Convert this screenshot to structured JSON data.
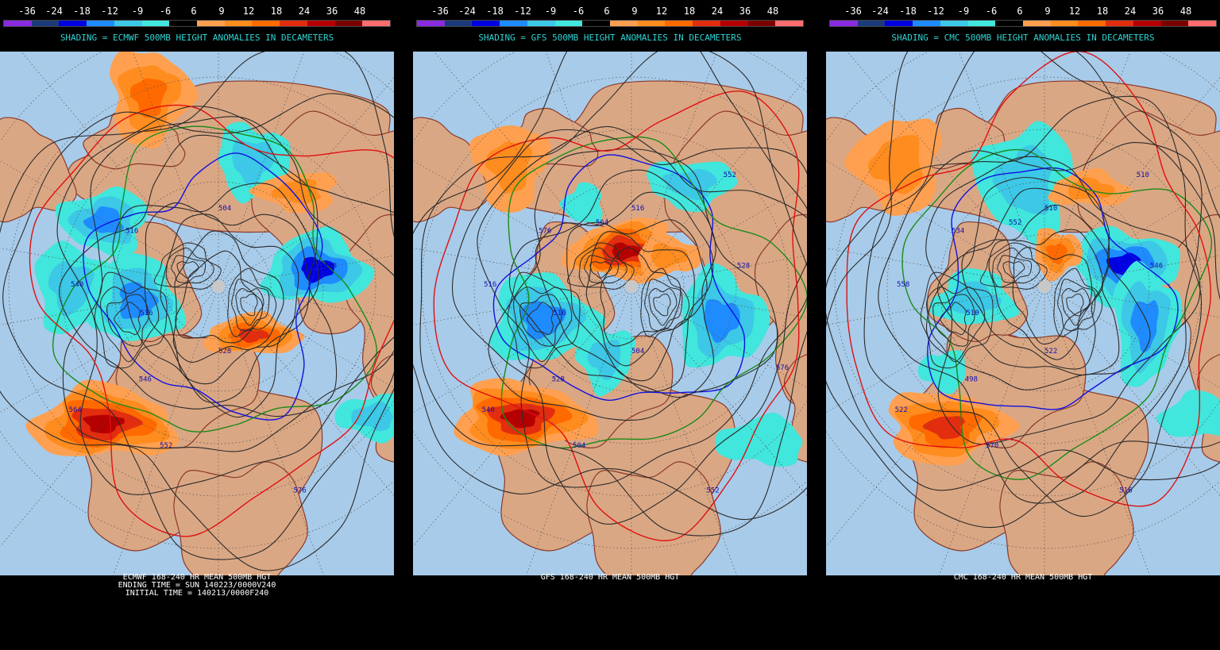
{
  "legend": {
    "ticks": [
      "-36",
      "-24",
      "-18",
      "-12",
      "-9",
      "-6",
      "6",
      "9",
      "12",
      "18",
      "24",
      "36",
      "48"
    ],
    "colors": [
      "#8a2be2",
      "#1a3a7a",
      "#0000e0",
      "#1e8cff",
      "#3cc8e6",
      "#41e6dc",
      "#000000",
      "#ffa050",
      "#ff8c1e",
      "#ff6a00",
      "#e32d0f",
      "#b40000",
      "#7a0000",
      "#ff6e6e"
    ]
  },
  "palette": {
    "ocean": "#a8cbe9",
    "land": "#daa784",
    "coast": "#8b3a2a",
    "contour": "#2b2b2b",
    "contour_red": "#e01010",
    "contour_green": "#1a8a1a",
    "contour_blue": "#1010e0",
    "shading_title": "#2fd3d3",
    "pole": "#c8c8c8"
  },
  "panels": [
    {
      "id": "ecmwf",
      "shading_title": "SHADING = ECMWF 500MB HEIGHT ANOMALIES IN DECAMETERS",
      "footer": [
        "ECMWF 168-240 HR MEAN 500MB HGT",
        "ENDING TIME = SUN 140223/0000V240",
        "INITIAL TIME = 140213/0000F240"
      ],
      "contour_labels": [
        "516",
        "528",
        "504",
        "546",
        "576",
        "516",
        "528",
        "540",
        "552",
        "564"
      ],
      "anomalies": [
        {
          "sign": "neg",
          "lon": 80,
          "r": 0.42,
          "level": 4,
          "rx": 65,
          "ry": 45
        },
        {
          "sign": "neg",
          "lon": 15,
          "r": 0.55,
          "level": 2,
          "rx": 45,
          "ry": 45
        },
        {
          "sign": "neg",
          "lon": 300,
          "r": 0.55,
          "level": 3,
          "rx": 55,
          "ry": 40
        },
        {
          "sign": "neg",
          "lon": 260,
          "r": 0.35,
          "level": 3,
          "rx": 55,
          "ry": 55
        },
        {
          "sign": "neg",
          "lon": 270,
          "r": 0.62,
          "level": 2,
          "rx": 45,
          "ry": 55
        },
        {
          "sign": "neg",
          "lon": 130,
          "r": 0.85,
          "level": 2,
          "rx": 45,
          "ry": 28
        },
        {
          "sign": "pos",
          "lon": 220,
          "r": 0.75,
          "level": 5,
          "rx": 90,
          "ry": 45
        },
        {
          "sign": "pos",
          "lon": 340,
          "r": 0.85,
          "level": 3,
          "rx": 50,
          "ry": 60
        },
        {
          "sign": "pos",
          "lon": 40,
          "r": 0.52,
          "level": 2,
          "rx": 50,
          "ry": 25
        },
        {
          "sign": "pos",
          "lon": 145,
          "r": 0.25,
          "level": 4,
          "rx": 60,
          "ry": 25
        },
        {
          "sign": "pos",
          "lon": 90,
          "r": 0.95,
          "level": 2,
          "rx": 40,
          "ry": 30
        }
      ]
    },
    {
      "id": "gfs",
      "shading_title": "SHADING = GFS 500MB HEIGHT ANOMALIES IN DECAMETERS",
      "footer": [
        "GFS 168-240 HR MEAN 500MB HGT"
      ],
      "contour_labels": [
        "516",
        "504",
        "516",
        "528",
        "552",
        "576",
        "528",
        "516",
        "504",
        "540",
        "552",
        "564",
        "576"
      ],
      "anomalies": [
        {
          "sign": "neg",
          "lon": 110,
          "r": 0.4,
          "level": 3,
          "rx": 55,
          "ry": 60
        },
        {
          "sign": "neg",
          "lon": 30,
          "r": 0.5,
          "level": 2,
          "rx": 55,
          "ry": 30
        },
        {
          "sign": "neg",
          "lon": 330,
          "r": 0.4,
          "level": 1,
          "rx": 25,
          "ry": 25
        },
        {
          "sign": "neg",
          "lon": 250,
          "r": 0.4,
          "level": 3,
          "rx": 65,
          "ry": 55
        },
        {
          "sign": "neg",
          "lon": 200,
          "r": 0.32,
          "level": 2,
          "rx": 35,
          "ry": 40
        },
        {
          "sign": "neg",
          "lon": 140,
          "r": 0.85,
          "level": 1,
          "rx": 55,
          "ry": 30
        },
        {
          "sign": "pos",
          "lon": 220,
          "r": 0.72,
          "level": 5,
          "rx": 85,
          "ry": 45
        },
        {
          "sign": "pos",
          "lon": 315,
          "r": 0.72,
          "level": 2,
          "rx": 45,
          "ry": 55
        },
        {
          "sign": "pos",
          "lon": 350,
          "r": 0.15,
          "level": 5,
          "rx": 70,
          "ry": 38
        },
        {
          "sign": "pos",
          "lon": 50,
          "r": 0.2,
          "level": 2,
          "rx": 40,
          "ry": 25
        }
      ]
    },
    {
      "id": "cmc",
      "shading_title": "SHADING = CMC 500MB HEIGHT ANOMALIES IN DECAMETERS",
      "footer": [
        "CMC 168-240 HR MEAN 500MB HGT"
      ],
      "contour_labels": [
        "510",
        "522",
        "510",
        "498",
        "516",
        "534",
        "546",
        "558",
        "570",
        "522",
        "510",
        "552"
      ],
      "anomalies": [
        {
          "sign": "neg",
          "lon": 75,
          "r": 0.35,
          "level": 4,
          "rx": 65,
          "ry": 45
        },
        {
          "sign": "neg",
          "lon": 350,
          "r": 0.45,
          "level": 2,
          "rx": 60,
          "ry": 70
        },
        {
          "sign": "neg",
          "lon": 260,
          "r": 0.3,
          "level": 2,
          "rx": 50,
          "ry": 35
        },
        {
          "sign": "neg",
          "lon": 110,
          "r": 0.45,
          "level": 3,
          "rx": 40,
          "ry": 75
        },
        {
          "sign": "neg",
          "lon": 230,
          "r": 0.55,
          "level": 1,
          "rx": 30,
          "ry": 25
        },
        {
          "sign": "neg",
          "lon": 130,
          "r": 0.85,
          "level": 1,
          "rx": 50,
          "ry": 28
        },
        {
          "sign": "pos",
          "lon": 215,
          "r": 0.72,
          "level": 4,
          "rx": 75,
          "ry": 45
        },
        {
          "sign": "pos",
          "lon": 310,
          "r": 0.8,
          "level": 2,
          "rx": 55,
          "ry": 60
        },
        {
          "sign": "pos",
          "lon": 25,
          "r": 0.45,
          "level": 2,
          "rx": 50,
          "ry": 22
        },
        {
          "sign": "pos",
          "lon": 20,
          "r": 0.15,
          "level": 3,
          "rx": 30,
          "ry": 30
        },
        {
          "sign": "pos",
          "lon": 90,
          "r": 0.95,
          "level": 2,
          "rx": 35,
          "ry": 35
        }
      ]
    }
  ]
}
